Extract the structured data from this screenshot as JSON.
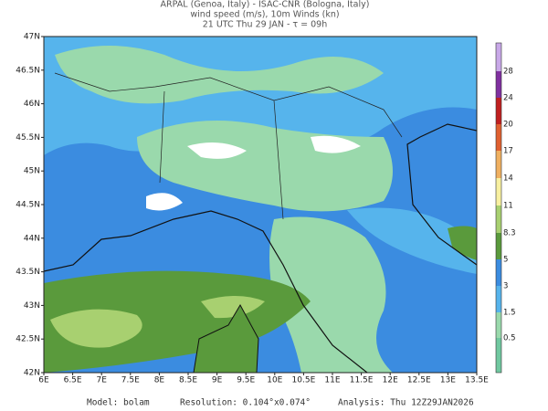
{
  "header": {
    "line1": "ARPAL (Genoa, Italy)  -  ISAC-CNR (Bologna, Italy)",
    "line2": "wind speed (m/s), 10m Winds (kn)",
    "line3": "21 UTC Thu 29 JAN  -  τ = 09h"
  },
  "map": {
    "lat_labels": [
      "47N",
      "46.5N",
      "46N",
      "45.5N",
      "45N",
      "44.5N",
      "44N",
      "43.5N",
      "43N",
      "42.5N",
      "42N"
    ],
    "lon_labels": [
      "6E",
      "6.5E",
      "7E",
      "7.5E",
      "8E",
      "8.5E",
      "9E",
      "9.5E",
      "10E",
      "10.5E",
      "11E",
      "11.5E",
      "12E",
      "12.5E",
      "13E",
      "13.5E"
    ]
  },
  "colorbar": {
    "labels": [
      "28",
      "24",
      "20",
      "17",
      "14",
      "11",
      "8.3",
      "5",
      "3",
      "1.5",
      "0.5"
    ]
  },
  "footer": {
    "model": "Model: bolam",
    "resolution": "Resolution: 0.104°x0.074°",
    "analysis": "Analysis: Thu 12Z29JAN2026"
  }
}
